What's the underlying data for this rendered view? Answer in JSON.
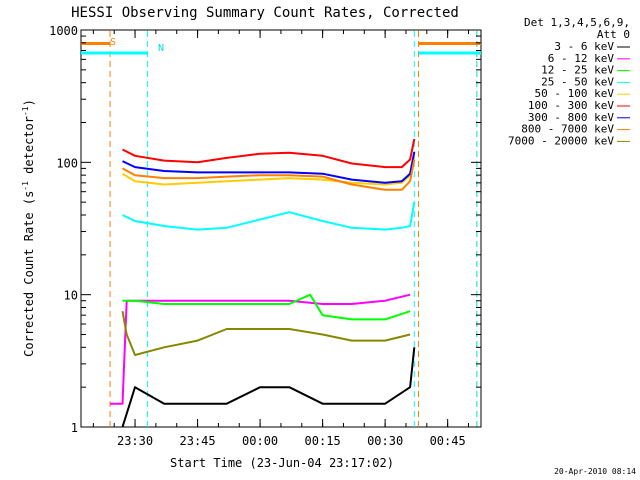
{
  "chart_data": {
    "type": "line",
    "title": "HESSI Observing Summary Count Rates, Corrected",
    "xlabel": "Start Time (23-Jun-04 23:17:02)",
    "ylabel": "Corrected Count Rate (s",
    "ylabel_sup1": "-1",
    "ylabel_mid": " detector",
    "ylabel_sup2": "-1",
    "ylabel_end": ")",
    "y_scale": "log",
    "ylim": [
      1,
      1000
    ],
    "y_ticks": [
      {
        "value": 1,
        "label": "1"
      },
      {
        "value": 10,
        "label": "10"
      },
      {
        "value": 100,
        "label": "100"
      },
      {
        "value": 1000,
        "label": "1000"
      }
    ],
    "xlim": [
      "23:17:02",
      "00:53:00"
    ],
    "x_ticks": [
      {
        "value": "23:30",
        "label": "23:30"
      },
      {
        "value": "23:45",
        "label": "23:45"
      },
      {
        "value": "00:00",
        "label": "00:00"
      },
      {
        "value": "00:15",
        "label": "00:15"
      },
      {
        "value": "00:30",
        "label": "00:30"
      },
      {
        "value": "00:45",
        "label": "00:45"
      }
    ],
    "legend": {
      "position": "top-right",
      "header": [
        "Det 1,3,4,5,6,9,",
        "Att 0"
      ]
    },
    "series": [
      {
        "name": "3 - 6 keV",
        "color": "#000000",
        "x": [
          "23:27",
          "23:30",
          "23:37",
          "23:45",
          "23:52",
          "00:00",
          "00:07",
          "00:15",
          "00:22",
          "00:30",
          "00:36",
          "00:37"
        ],
        "y": [
          1,
          2,
          1.5,
          1.5,
          1.5,
          2,
          2,
          1.5,
          1.5,
          1.5,
          2,
          4
        ]
      },
      {
        "name": "6 - 12 keV",
        "color": "#ff00ff",
        "x": [
          "23:24",
          "23:27",
          "23:28",
          "23:30",
          "23:37",
          "23:45",
          "23:52",
          "00:00",
          "00:07",
          "00:15",
          "00:22",
          "00:30",
          "00:36"
        ],
        "y": [
          1.5,
          1.5,
          9,
          9,
          9,
          9,
          9,
          9,
          9,
          8.5,
          8.5,
          9,
          10
        ]
      },
      {
        "name": "12 - 25 keV",
        "color": "#00ff00",
        "x": [
          "23:27",
          "23:30",
          "23:37",
          "23:45",
          "23:52",
          "00:00",
          "00:07",
          "00:12",
          "00:15",
          "00:22",
          "00:30",
          "00:36"
        ],
        "y": [
          9,
          9,
          8.5,
          8.5,
          8.5,
          8.5,
          8.5,
          10,
          7,
          6.5,
          6.5,
          7.5
        ]
      },
      {
        "name": "25 - 50 keV",
        "color": "#00ffff",
        "x": [
          "23:27",
          "23:30",
          "23:37",
          "23:45",
          "23:52",
          "00:00",
          "00:07",
          "00:15",
          "00:22",
          "00:30",
          "00:34",
          "00:36",
          "00:37"
        ],
        "y": [
          40,
          36,
          33,
          31,
          32,
          37,
          42,
          36,
          32,
          31,
          32,
          33,
          50
        ]
      },
      {
        "name": "50 - 100 keV",
        "color": "#ffcc00",
        "x": [
          "23:27",
          "23:30",
          "23:37",
          "23:45",
          "23:52",
          "00:00",
          "00:07",
          "00:15",
          "00:22",
          "00:30",
          "00:34",
          "00:36",
          "00:37"
        ],
        "y": [
          82,
          72,
          68,
          70,
          72,
          74,
          76,
          74,
          70,
          68,
          70,
          80,
          110
        ]
      },
      {
        "name": "100 - 300 keV",
        "color": "#ff0000",
        "x": [
          "23:27",
          "23:30",
          "23:37",
          "23:45",
          "23:52",
          "00:00",
          "00:07",
          "00:15",
          "00:22",
          "00:30",
          "00:34",
          "00:36",
          "00:37"
        ],
        "y": [
          125,
          112,
          103,
          100,
          108,
          116,
          118,
          112,
          98,
          92,
          92,
          105,
          150
        ]
      },
      {
        "name": "300 - 800 keV",
        "color": "#0000ff",
        "x": [
          "23:27",
          "23:30",
          "23:37",
          "23:45",
          "23:52",
          "00:00",
          "00:07",
          "00:15",
          "00:22",
          "00:30",
          "00:34",
          "00:36",
          "00:37"
        ],
        "y": [
          102,
          92,
          86,
          84,
          84,
          84,
          84,
          82,
          74,
          70,
          72,
          82,
          120
        ]
      },
      {
        "name": "800 - 7000 keV",
        "color": "#ff8000",
        "x": [
          "23:27",
          "23:30",
          "23:37",
          "23:45",
          "23:52",
          "00:00",
          "00:07",
          "00:15",
          "00:22",
          "00:30",
          "00:34",
          "00:36",
          "00:37"
        ],
        "y": [
          90,
          80,
          76,
          76,
          78,
          80,
          80,
          78,
          68,
          62,
          62,
          72,
          105
        ]
      },
      {
        "name": "7000 - 20000 keV",
        "color": "#888800",
        "x": [
          "23:27",
          "23:28",
          "23:30",
          "23:37",
          "23:45",
          "23:52",
          "00:00",
          "00:07",
          "00:15",
          "00:22",
          "00:30",
          "00:36"
        ],
        "y": [
          7.5,
          5,
          3.5,
          4,
          4.5,
          5.5,
          5.5,
          5.5,
          5,
          4.5,
          4.5,
          5
        ]
      }
    ],
    "annotations": [
      {
        "label": "S",
        "color": "#ff8000"
      },
      {
        "label": "N",
        "color": "#00ffff"
      }
    ],
    "markers": [
      {
        "time": "23:24",
        "color": "#ff8000"
      },
      {
        "time": "23:33",
        "color": "#00ffff"
      },
      {
        "time": "00:37",
        "color": "#00ffff"
      },
      {
        "time": "00:38",
        "color": "#ff8000"
      },
      {
        "time": "00:52",
        "color": "#ff8000"
      },
      {
        "time": "00:52",
        "color": "#00ffff"
      }
    ],
    "bars": [
      {
        "color": "#ff8000",
        "y": 790,
        "from": "23:17:02",
        "to": "23:24"
      },
      {
        "color": "#ff8000",
        "y": 790,
        "from": "00:38",
        "to": "00:53:00"
      },
      {
        "color": "#00ffff",
        "y": 670,
        "from": "23:17:02",
        "to": "23:33"
      },
      {
        "color": "#00ffff",
        "y": 670,
        "from": "00:38",
        "to": "00:53:00"
      }
    ],
    "timestamp": "20-Apr-2010 08:14"
  }
}
